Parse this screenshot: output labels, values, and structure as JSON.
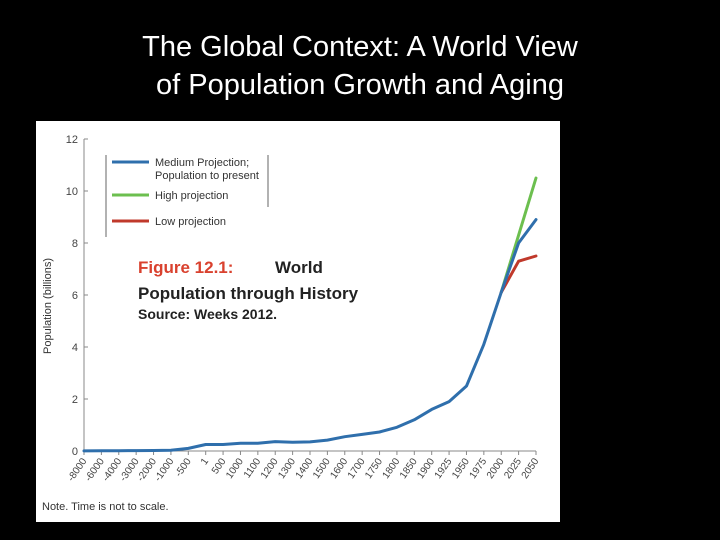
{
  "slide": {
    "title_line1": "The Global Context: A World View",
    "title_line2": "of Population Growth and Aging"
  },
  "figure": {
    "caption_label": "Figure 12.1:",
    "caption_title_1": "World",
    "caption_title_2": "Population through History",
    "caption_source": "Source: Weeks 2012.",
    "note": "Note. Time is not to scale."
  },
  "colors": {
    "medium": "#2f6fac",
    "high": "#6cbf4f",
    "low": "#c0392b",
    "caption_red": "#d9412e",
    "axis": "#888888"
  },
  "chart_data": {
    "type": "line",
    "ylabel": "Population (billions)",
    "xlabel": "",
    "ylim": [
      0,
      12
    ],
    "y_ticks": [
      "0",
      "2",
      "4",
      "6",
      "8",
      "10",
      "12"
    ],
    "x": [
      "-8000",
      "-6000",
      "-4000",
      "-3000",
      "-2000",
      "-1000",
      "-500",
      "1",
      "500",
      "1000",
      "1100",
      "1200",
      "1300",
      "1400",
      "1500",
      "1600",
      "1700",
      "1750",
      "1800",
      "1850",
      "1900",
      "1925",
      "1950",
      "1975",
      "2000",
      "2025",
      "2050"
    ],
    "grid": false,
    "legend_position": "top-left",
    "series": [
      {
        "name": "Medium Projection; Population to present",
        "color_key": "medium",
        "values": [
          0.005,
          0.007,
          0.01,
          0.015,
          0.02,
          0.03,
          0.1,
          0.25,
          0.25,
          0.3,
          0.3,
          0.36,
          0.34,
          0.35,
          0.42,
          0.55,
          0.64,
          0.73,
          0.91,
          1.2,
          1.6,
          1.9,
          2.5,
          4.1,
          6.1,
          8.0,
          8.9
        ]
      },
      {
        "name": "High projection",
        "color_key": "high",
        "values": [
          null,
          null,
          null,
          null,
          null,
          null,
          null,
          null,
          null,
          null,
          null,
          null,
          null,
          null,
          null,
          null,
          null,
          null,
          null,
          null,
          null,
          null,
          null,
          null,
          6.1,
          8.3,
          10.5
        ]
      },
      {
        "name": "Low projection",
        "color_key": "low",
        "values": [
          null,
          null,
          null,
          null,
          null,
          null,
          null,
          null,
          null,
          null,
          null,
          null,
          null,
          null,
          null,
          null,
          null,
          null,
          null,
          null,
          null,
          null,
          null,
          null,
          6.1,
          7.3,
          7.5
        ]
      }
    ]
  }
}
